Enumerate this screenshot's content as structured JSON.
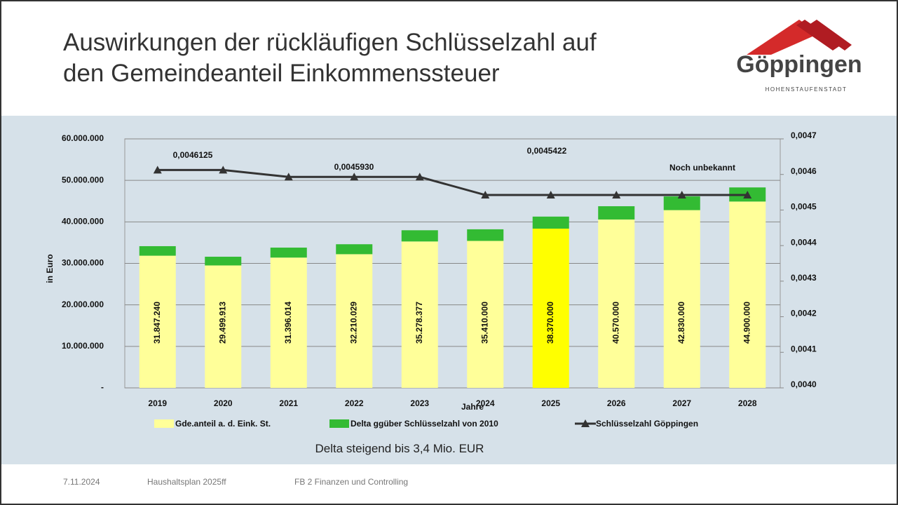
{
  "slide": {
    "title_lines": [
      "Auswirkungen der rückläufigen Schlüsselzahl auf",
      "den Gemeindeanteil Einkommenssteuer"
    ],
    "logo": "Göppingen",
    "logo_sub": "HOHENSTAUFENSTADT",
    "caption": "Delta steigend bis 3,4 Mio. EUR",
    "footer": [
      "7.11.2024",
      "Haushaltsplan 2025ff",
      "FB 2 Finanzen und Controlling"
    ]
  },
  "chart_data": {
    "type": "bar",
    "stacked": true,
    "y_label": "in Euro",
    "x_label": "Jahre",
    "categories": [
      "2019",
      "2020",
      "2021",
      "2022",
      "2023",
      "2024",
      "2025",
      "2026",
      "2027",
      "2028"
    ],
    "series": [
      {
        "name": "Gde.anteil a. d. Eink. St.",
        "color": "#ffff99",
        "colors": [
          "#ffff99",
          "#ffff99",
          "#ffff99",
          "#ffff99",
          "#ffff99",
          "#ffff99",
          "#ffff00",
          "#ffff99",
          "#ffff99",
          "#ffff99"
        ],
        "values": [
          31847240,
          29499913,
          31396014,
          32210029,
          35278377,
          35410000,
          38370000,
          40570000,
          42830000,
          44900000
        ],
        "value_labels": [
          "31.847.240",
          "29.499.913",
          "31.396.014",
          "32.210.029",
          "35.278.377",
          "35.410.000",
          "38.370.000",
          "40.570.000",
          "42.830.000",
          "44.900.000"
        ]
      },
      {
        "name": "Delta ggüber Schlüsselzahl von 2010",
        "color": "#33bb33",
        "values": [
          2300000,
          2100000,
          2400000,
          2400000,
          2700000,
          2800000,
          2900000,
          3200000,
          3300000,
          3400000
        ]
      },
      {
        "name": "Schlüsselzahl Göppingen",
        "type": "line",
        "axis": "y2",
        "color": "#333333",
        "values": [
          0.0046125,
          0.0046125,
          0.004593,
          0.004593,
          0.004593,
          0.0045422,
          0.0045422,
          0.0045422,
          0.0045422,
          0.0045422
        ]
      }
    ],
    "annotations": [
      "0,0046125",
      "0,0045930",
      "0,0045422",
      "Noch unbekannt"
    ],
    "ylim": [
      0,
      60000000
    ],
    "yticks": [
      {
        "value": 0,
        "label": "-"
      },
      {
        "value": 10000000,
        "label": "10.000.000"
      },
      {
        "value": 20000000,
        "label": "20.000.000"
      },
      {
        "value": 30000000,
        "label": "30.000.000"
      },
      {
        "value": 40000000,
        "label": "40.000.000"
      },
      {
        "value": 50000000,
        "label": "50.000.000"
      },
      {
        "value": 60000000,
        "label": "60.000.000"
      }
    ],
    "y2lim": [
      0.004,
      0.0047
    ],
    "y2ticks": [
      {
        "value": 0.004,
        "label": "0,0040"
      },
      {
        "value": 0.0041,
        "label": "0,0041"
      },
      {
        "value": 0.0042,
        "label": "0,0042"
      },
      {
        "value": 0.0043,
        "label": "0,0043"
      },
      {
        "value": 0.0044,
        "label": "0,0044"
      },
      {
        "value": 0.0045,
        "label": "0,0045"
      },
      {
        "value": 0.0046,
        "label": "0,0046"
      },
      {
        "value": 0.0047,
        "label": "0,0047"
      }
    ],
    "grid": true,
    "legend": "bottom"
  }
}
